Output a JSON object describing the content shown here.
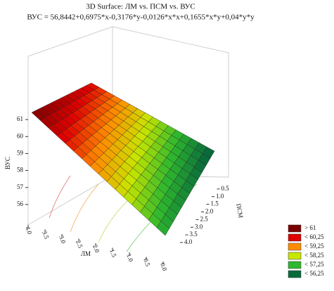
{
  "chart_data": {
    "type": "surface3d",
    "title": "3D Surface: ЛМ     vs. ПСМ     vs. ВУС",
    "subtitle": "ВУС = 56,8442+0,6975*x-0,3176*y-0,0126*x*x+0,1655*x*y+0,04*y*y",
    "x_label": "ЛМ",
    "y_label": "ПСМ",
    "z_label": "ВУС",
    "xlim": [
      0,
      4
    ],
    "ylim": [
      0,
      4
    ],
    "zlim": [
      55.5,
      61.5
    ],
    "xticks": [
      {
        "value": 4,
        "label": "4.0"
      },
      {
        "value": 3.5,
        "label": "3.5"
      },
      {
        "value": 3,
        "label": "3.0"
      },
      {
        "value": 2.5,
        "label": "2.5"
      },
      {
        "value": 2,
        "label": "2.0"
      },
      {
        "value": 1.5,
        "label": "1.5"
      },
      {
        "value": 1,
        "label": "1.0"
      },
      {
        "value": 0.5,
        "label": "0.5"
      },
      {
        "value": 0,
        "label": "0.0"
      }
    ],
    "yticks": [
      {
        "value": 0.5,
        "label": "0.5"
      },
      {
        "value": 1,
        "label": "1.0"
      },
      {
        "value": 1.5,
        "label": "1.5"
      },
      {
        "value": 2,
        "label": "2.0"
      },
      {
        "value": 2.5,
        "label": "2.5"
      },
      {
        "value": 3,
        "label": "3.0"
      },
      {
        "value": 3.5,
        "label": "3.5"
      },
      {
        "value": 4,
        "label": "4.0"
      }
    ],
    "zticks": [
      61,
      60,
      59,
      58,
      57,
      56
    ],
    "legend": [
      {
        "label": "> 61",
        "color": "#7a0000"
      },
      {
        "label": "< 60,25",
        "color": "#e00000"
      },
      {
        "label": "< 59,25",
        "color": "#ff8c00"
      },
      {
        "label": "< 58,25",
        "color": "#c8e600"
      },
      {
        "label": "< 57,25",
        "color": "#2eb82e"
      },
      {
        "label": "< 56,25",
        "color": "#0a6b3a"
      }
    ]
  }
}
